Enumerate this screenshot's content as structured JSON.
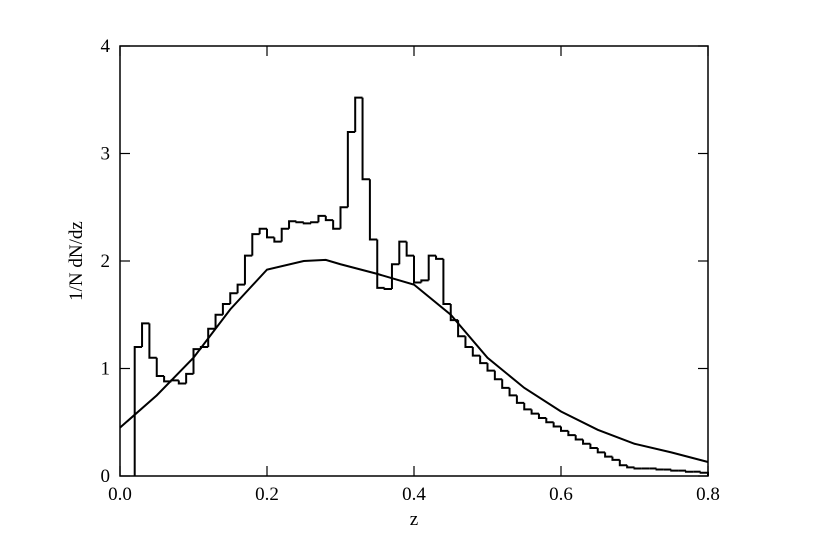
{
  "chart_data": {
    "type": "histogram",
    "xlabel": "z",
    "ylabel": "1/N dN/dz",
    "xlim": [
      0,
      0.8
    ],
    "ylim": [
      0,
      4
    ],
    "xticks": [
      {
        "value": 0,
        "label": "0.0"
      },
      0.2,
      0.4,
      0.6,
      0.8
    ],
    "yticks": [
      0,
      1,
      2,
      3,
      4
    ],
    "color": "#000000",
    "bins": [
      0.02,
      0.03,
      0.04,
      0.05,
      0.06,
      0.07,
      0.08,
      0.09,
      0.1,
      0.11,
      0.12,
      0.13,
      0.14,
      0.15,
      0.16,
      0.17,
      0.18,
      0.19,
      0.2,
      0.21,
      0.22,
      0.23,
      0.24,
      0.25,
      0.26,
      0.27,
      0.28,
      0.29,
      0.3,
      0.31,
      0.32,
      0.33,
      0.34,
      0.35,
      0.36,
      0.37,
      0.38,
      0.39,
      0.4,
      0.41,
      0.42,
      0.43,
      0.44,
      0.45,
      0.46,
      0.47,
      0.48,
      0.49,
      0.5,
      0.51,
      0.52,
      0.53,
      0.54,
      0.55,
      0.56,
      0.57,
      0.58,
      0.59,
      0.6,
      0.61,
      0.62,
      0.63,
      0.64,
      0.65,
      0.66,
      0.67,
      0.68,
      0.69,
      0.7,
      0.71,
      0.72,
      0.73,
      0.74,
      0.75,
      0.76,
      0.77,
      0.78,
      0.79,
      0.8
    ],
    "values": [
      1.2,
      1.42,
      1.1,
      0.93,
      0.88,
      0.89,
      0.86,
      0.95,
      1.18,
      1.2,
      1.37,
      1.5,
      1.6,
      1.7,
      1.78,
      2.05,
      2.25,
      2.3,
      2.22,
      2.18,
      2.3,
      2.37,
      2.36,
      2.35,
      2.36,
      2.42,
      2.38,
      2.3,
      2.5,
      3.2,
      3.52,
      2.76,
      2.2,
      1.75,
      1.74,
      1.97,
      2.18,
      2.05,
      1.8,
      1.82,
      2.05,
      2.02,
      1.6,
      1.45,
      1.3,
      1.2,
      1.12,
      1.05,
      0.98,
      0.9,
      0.82,
      0.75,
      0.68,
      0.62,
      0.58,
      0.54,
      0.5,
      0.46,
      0.42,
      0.38,
      0.34,
      0.3,
      0.26,
      0.22,
      0.18,
      0.15,
      0.1,
      0.08,
      0.07,
      0.07,
      0.07,
      0.06,
      0.06,
      0.05,
      0.05,
      0.04,
      0.04,
      0.03
    ],
    "curve": {
      "x": [
        0,
        0.05,
        0.1,
        0.15,
        0.2,
        0.25,
        0.28,
        0.3,
        0.35,
        0.4,
        0.45,
        0.5,
        0.55,
        0.6,
        0.65,
        0.7,
        0.75,
        0.8
      ],
      "y": [
        0.45,
        0.75,
        1.1,
        1.55,
        1.92,
        2.0,
        2.01,
        1.97,
        1.88,
        1.78,
        1.5,
        1.1,
        0.82,
        0.6,
        0.43,
        0.3,
        0.22,
        0.13
      ],
      "color": "#000000"
    }
  }
}
